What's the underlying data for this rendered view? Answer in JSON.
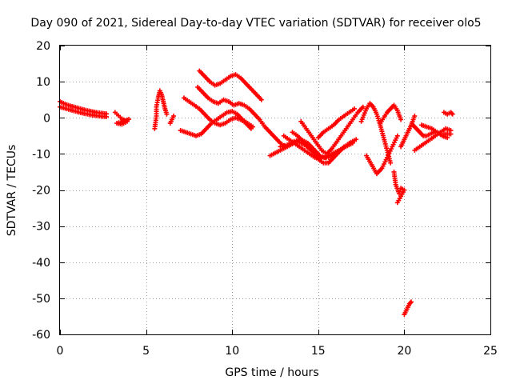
{
  "chart_data": {
    "type": "scatter",
    "title": "Day 090 of 2021, Sidereal Day-to-day VTEC variation (SDTVAR) for receiver olo5",
    "xlabel": "GPS time / hours",
    "ylabel": "SDTVAR / TECUs",
    "xlim": [
      0,
      25
    ],
    "ylim": [
      -60,
      20
    ],
    "x_ticks": [
      0,
      5,
      10,
      15,
      20,
      25
    ],
    "y_ticks": [
      -60,
      -50,
      -40,
      -30,
      -20,
      -10,
      0,
      10,
      20
    ],
    "x_tick_labels": [
      "0",
      "5",
      "10",
      "15",
      "20",
      "25"
    ],
    "y_tick_labels": [
      "-60",
      "-50",
      "-40",
      "-30",
      "-20",
      "-10",
      "0",
      "10",
      "20"
    ],
    "grid": true,
    "marker": "+",
    "color": "#ff0000",
    "series": [
      {
        "name": "olo5",
        "segments": [
          [
            [
              0.0,
              4.5
            ],
            [
              0.3,
              3.8
            ],
            [
              0.6,
              3.3
            ],
            [
              0.9,
              2.9
            ],
            [
              1.2,
              2.5
            ],
            [
              1.5,
              2.1
            ],
            [
              1.8,
              1.8
            ],
            [
              2.1,
              1.5
            ],
            [
              2.4,
              1.3
            ],
            [
              2.7,
              1.1
            ]
          ],
          [
            [
              0.0,
              3.0
            ],
            [
              0.3,
              2.6
            ],
            [
              0.6,
              2.2
            ],
            [
              0.9,
              1.8
            ],
            [
              1.2,
              1.4
            ],
            [
              1.5,
              1.1
            ],
            [
              1.8,
              0.8
            ],
            [
              2.1,
              0.6
            ],
            [
              2.4,
              0.4
            ],
            [
              2.7,
              0.3
            ]
          ],
          [
            [
              3.2,
              1.5
            ],
            [
              3.4,
              0.6
            ],
            [
              3.6,
              -0.3
            ],
            [
              3.8,
              -0.8
            ],
            [
              4.0,
              -0.4
            ],
            [
              3.3,
              -1.5
            ],
            [
              3.6,
              -1.8
            ],
            [
              3.9,
              -1.0
            ]
          ],
          [
            [
              5.5,
              -3.0
            ],
            [
              5.6,
              0.5
            ],
            [
              5.6,
              3.0
            ],
            [
              5.7,
              5.5
            ],
            [
              5.8,
              7.5
            ],
            [
              5.9,
              6.5
            ],
            [
              6.0,
              4.5
            ],
            [
              6.1,
              2.5
            ],
            [
              6.2,
              1.0
            ]
          ],
          [
            [
              6.4,
              -1.5
            ],
            [
              6.5,
              -0.5
            ],
            [
              6.6,
              0.5
            ]
          ],
          [
            [
              7.0,
              -3.5
            ],
            [
              7.3,
              -4.0
            ],
            [
              7.6,
              -4.5
            ],
            [
              7.9,
              -5.0
            ],
            [
              8.2,
              -4.5
            ],
            [
              8.5,
              -3.0
            ],
            [
              8.8,
              -1.5
            ],
            [
              9.1,
              -0.5
            ],
            [
              9.4,
              0.5
            ],
            [
              9.7,
              1.5
            ],
            [
              10.0,
              1.8
            ],
            [
              10.3,
              1.0
            ],
            [
              10.6,
              -0.5
            ],
            [
              10.9,
              -1.5
            ],
            [
              11.2,
              -2.5
            ]
          ],
          [
            [
              7.2,
              5.5
            ],
            [
              7.5,
              4.5
            ],
            [
              7.8,
              3.5
            ],
            [
              8.1,
              2.5
            ],
            [
              8.4,
              1.0
            ],
            [
              8.7,
              -0.5
            ],
            [
              9.0,
              -1.5
            ],
            [
              9.3,
              -2.0
            ],
            [
              9.6,
              -1.5
            ],
            [
              9.9,
              -0.5
            ],
            [
              10.2,
              0.0
            ],
            [
              10.5,
              -0.5
            ],
            [
              10.8,
              -1.5
            ],
            [
              11.1,
              -3.0
            ]
          ],
          [
            [
              8.0,
              8.5
            ],
            [
              8.3,
              7.0
            ],
            [
              8.6,
              5.5
            ],
            [
              8.9,
              4.5
            ],
            [
              9.2,
              4.0
            ],
            [
              9.5,
              5.0
            ],
            [
              9.8,
              4.5
            ],
            [
              10.1,
              3.5
            ],
            [
              10.4,
              4.0
            ],
            [
              10.7,
              3.5
            ],
            [
              11.0,
              2.5
            ],
            [
              11.3,
              1.0
            ],
            [
              11.6,
              -0.5
            ],
            [
              11.9,
              -2.5
            ],
            [
              12.2,
              -4.0
            ],
            [
              12.5,
              -5.5
            ],
            [
              12.8,
              -7.0
            ],
            [
              13.1,
              -8.0
            ]
          ],
          [
            [
              8.1,
              13.0
            ],
            [
              8.4,
              11.5
            ],
            [
              8.7,
              10.0
            ],
            [
              9.0,
              9.0
            ],
            [
              9.3,
              9.5
            ],
            [
              9.6,
              10.5
            ],
            [
              9.9,
              11.5
            ],
            [
              10.2,
              12.0
            ],
            [
              10.5,
              11.0
            ],
            [
              10.8,
              9.5
            ],
            [
              11.1,
              8.0
            ],
            [
              11.4,
              6.5
            ],
            [
              11.7,
              5.0
            ]
          ],
          [
            [
              12.2,
              -10.5
            ],
            [
              12.6,
              -9.5
            ],
            [
              13.0,
              -8.5
            ],
            [
              13.4,
              -7.5
            ],
            [
              13.8,
              -6.5
            ],
            [
              14.2,
              -7.5
            ],
            [
              14.6,
              -9.0
            ],
            [
              15.0,
              -10.5
            ],
            [
              15.4,
              -11.0
            ],
            [
              15.8,
              -10.0
            ],
            [
              16.2,
              -9.0
            ],
            [
              16.6,
              -8.0
            ],
            [
              17.0,
              -7.0
            ]
          ],
          [
            [
              12.8,
              -8.0
            ],
            [
              13.2,
              -7.5
            ],
            [
              13.6,
              -6.5
            ],
            [
              14.0,
              -6.0
            ],
            [
              14.4,
              -7.0
            ],
            [
              14.8,
              -9.0
            ],
            [
              15.2,
              -11.0
            ],
            [
              15.6,
              -11.0
            ],
            [
              16.0,
              -10.0
            ],
            [
              16.4,
              -8.5
            ],
            [
              16.8,
              -7.0
            ],
            [
              17.2,
              -6.0
            ]
          ],
          [
            [
              13.5,
              -4.0
            ],
            [
              13.8,
              -5.0
            ],
            [
              14.1,
              -6.5
            ],
            [
              14.4,
              -8.0
            ],
            [
              14.7,
              -9.5
            ],
            [
              15.0,
              -11.5
            ],
            [
              15.3,
              -12.5
            ],
            [
              15.6,
              -12.5
            ],
            [
              15.9,
              -11.0
            ],
            [
              16.2,
              -9.5
            ],
            [
              16.5,
              -8.0
            ]
          ],
          [
            [
              14.0,
              -1.0
            ],
            [
              14.3,
              -3.0
            ],
            [
              14.6,
              -5.0
            ],
            [
              14.9,
              -7.0
            ],
            [
              15.2,
              -9.0
            ],
            [
              15.5,
              -10.0
            ],
            [
              15.8,
              -8.5
            ],
            [
              16.1,
              -6.5
            ],
            [
              16.4,
              -4.5
            ],
            [
              16.7,
              -2.5
            ],
            [
              17.0,
              -0.5
            ],
            [
              17.3,
              1.5
            ],
            [
              17.6,
              3.0
            ]
          ],
          [
            [
              15.0,
              -5.5
            ],
            [
              15.3,
              -4.0
            ],
            [
              15.6,
              -3.0
            ],
            [
              15.9,
              -2.0
            ],
            [
              16.2,
              -0.5
            ],
            [
              16.5,
              0.5
            ],
            [
              16.8,
              1.5
            ],
            [
              17.1,
              2.5
            ]
          ],
          [
            [
              13.0,
              -5.0
            ],
            [
              13.3,
              -6.0
            ],
            [
              13.6,
              -7.0
            ],
            [
              13.9,
              -8.0
            ],
            [
              14.2,
              -9.0
            ],
            [
              14.5,
              -10.0
            ],
            [
              14.8,
              -11.0
            ],
            [
              15.1,
              -11.5
            ]
          ],
          [
            [
              17.8,
              -10.5
            ],
            [
              18.1,
              -13.0
            ],
            [
              18.4,
              -15.5
            ],
            [
              18.7,
              -14.0
            ],
            [
              19.0,
              -11.0
            ],
            [
              19.3,
              -8.0
            ],
            [
              19.6,
              -5.0
            ]
          ],
          [
            [
              17.5,
              -1.0
            ],
            [
              17.8,
              2.5
            ],
            [
              18.0,
              4.0
            ],
            [
              18.2,
              3.0
            ],
            [
              18.4,
              1.0
            ],
            [
              18.6,
              -2.0
            ],
            [
              18.8,
              -5.5
            ],
            [
              19.0,
              -9.0
            ],
            [
              19.2,
              -12.5
            ]
          ],
          [
            [
              18.6,
              -1.5
            ],
            [
              18.8,
              0.0
            ],
            [
              19.0,
              1.5
            ],
            [
              19.2,
              2.5
            ],
            [
              19.4,
              3.5
            ],
            [
              19.6,
              2.0
            ],
            [
              19.8,
              -0.5
            ]
          ],
          [
            [
              19.4,
              -15.0
            ],
            [
              19.5,
              -18.5
            ],
            [
              19.7,
              -21.0
            ],
            [
              19.8,
              -19.5
            ],
            [
              20.0,
              -20.0
            ],
            [
              19.6,
              -23.5
            ]
          ],
          [
            [
              20.0,
              -54.5
            ],
            [
              20.1,
              -53.5
            ],
            [
              20.2,
              -52.5
            ],
            [
              20.3,
              -51.5
            ],
            [
              20.4,
              -51.0
            ]
          ],
          [
            [
              19.8,
              -8.0
            ],
            [
              20.0,
              -6.0
            ],
            [
              20.2,
              -4.0
            ],
            [
              20.4,
              -2.0
            ],
            [
              20.6,
              0.5
            ]
          ],
          [
            [
              20.5,
              -2.0
            ],
            [
              20.7,
              -3.0
            ],
            [
              20.9,
              -4.0
            ],
            [
              21.1,
              -5.0
            ],
            [
              21.3,
              -5.0
            ],
            [
              21.5,
              -4.5
            ],
            [
              21.7,
              -4.0
            ],
            [
              21.9,
              -4.0
            ],
            [
              22.1,
              -4.5
            ],
            [
              22.3,
              -4.5
            ],
            [
              22.5,
              -4.5
            ],
            [
              22.7,
              -4.5
            ]
          ],
          [
            [
              20.6,
              -9.0
            ],
            [
              20.9,
              -8.0
            ],
            [
              21.2,
              -7.0
            ],
            [
              21.5,
              -6.0
            ],
            [
              21.8,
              -5.0
            ],
            [
              22.1,
              -4.0
            ],
            [
              22.4,
              -3.0
            ],
            [
              22.7,
              -3.5
            ]
          ],
          [
            [
              21.0,
              -2.0
            ],
            [
              21.3,
              -2.5
            ],
            [
              21.6,
              -3.0
            ],
            [
              21.9,
              -4.0
            ],
            [
              22.2,
              -5.0
            ],
            [
              22.5,
              -5.5
            ]
          ],
          [
            [
              22.3,
              1.5
            ],
            [
              22.5,
              1.0
            ],
            [
              22.7,
              1.5
            ],
            [
              22.8,
              1.0
            ]
          ]
        ]
      }
    ]
  }
}
